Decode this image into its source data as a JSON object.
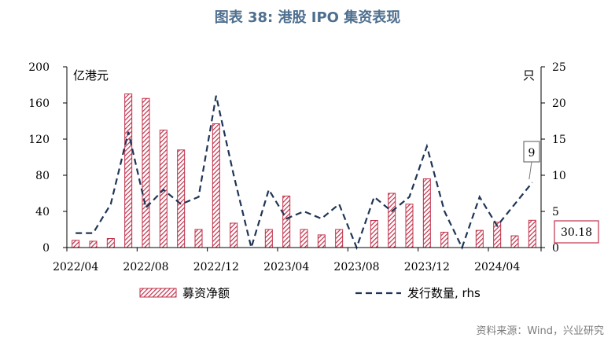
{
  "title": "图表 38: 港股 IPO 集资表现",
  "source": "资料来源：Wind，兴业研究",
  "colors": {
    "bar": "#c0314a",
    "line": "#1f3556",
    "title": "#4e6f8f",
    "ann_box": "#c0314a"
  },
  "chart_data": {
    "type": "bar",
    "categories": [
      "2022/04",
      "2022/05",
      "2022/06",
      "2022/07",
      "2022/08",
      "2022/09",
      "2022/10",
      "2022/11",
      "2022/12",
      "2023/01",
      "2023/02",
      "2023/03",
      "2023/04",
      "2023/05",
      "2023/06",
      "2023/07",
      "2023/08",
      "2023/09",
      "2023/10",
      "2023/11",
      "2023/12",
      "2024/01",
      "2024/02",
      "2024/03",
      "2024/04",
      "2024/05",
      "2024/06"
    ],
    "x_tick_labels": [
      "2022/04",
      "2022/08",
      "2022/12",
      "2023/04",
      "2023/08",
      "2023/12",
      "2024/04"
    ],
    "y_left": {
      "label": "亿港元",
      "lim": [
        0,
        200
      ],
      "ticks": [
        "0",
        "40",
        "80",
        "120",
        "160",
        "200"
      ]
    },
    "y_right": {
      "label": "只",
      "lim": [
        0,
        25
      ],
      "ticks": [
        "0",
        "5",
        "10",
        "15",
        "20",
        "25"
      ]
    },
    "series": [
      {
        "name": "募资净额",
        "type": "bar",
        "axis": "left",
        "values": [
          8,
          7,
          10,
          170,
          165,
          130,
          108,
          20,
          137,
          27,
          0,
          20,
          57,
          20,
          14,
          20,
          0,
          30,
          60,
          48,
          76,
          17,
          0,
          19,
          28,
          13,
          30.18
        ]
      },
      {
        "name": "发行数量, rhs",
        "type": "line",
        "axis": "right",
        "values": [
          2,
          2,
          6,
          16,
          5.5,
          8,
          6,
          7,
          21,
          10,
          0,
          8,
          4,
          5,
          4,
          6,
          0,
          7,
          5,
          7,
          14,
          5,
          0,
          7,
          3,
          6,
          9
        ]
      }
    ],
    "annotations": [
      {
        "text": "9",
        "series": "发行数量, rhs"
      },
      {
        "text": "30.18",
        "series": "募资净额"
      }
    ],
    "legend_position": "bottom",
    "grid": false
  }
}
